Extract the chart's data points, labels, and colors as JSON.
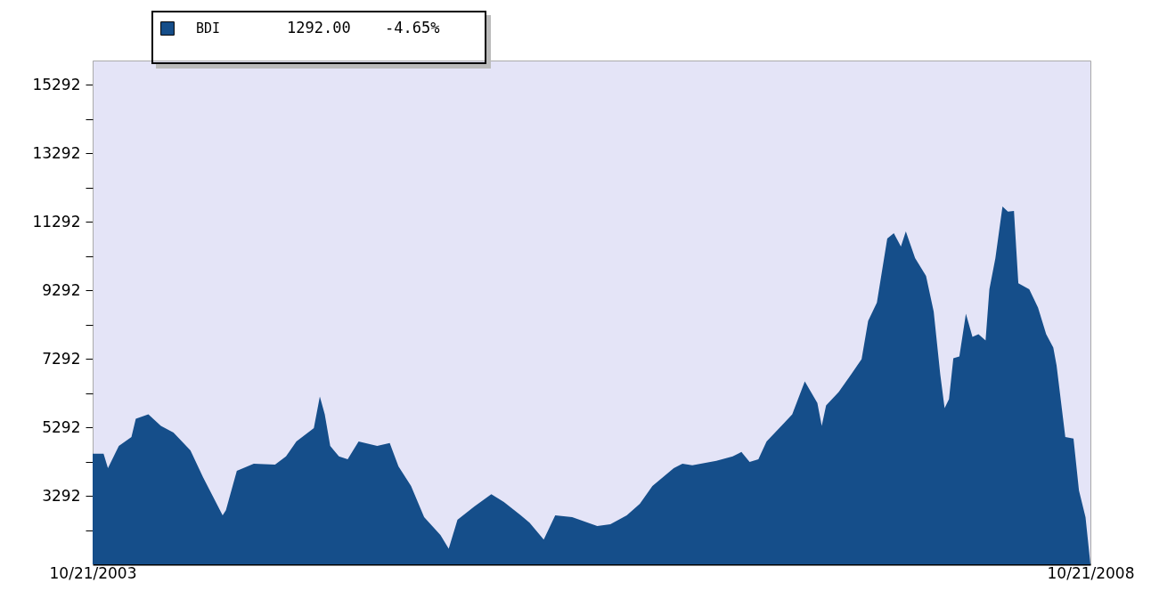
{
  "chart_data": {
    "type": "area",
    "x": [
      "2003-10-21",
      "2003-11-10",
      "2003-11-18",
      "2003-12-08",
      "2003-12-31",
      "2004-01-08",
      "2004-01-31",
      "2004-02-23",
      "2004-03-17",
      "2004-04-17",
      "2004-05-10",
      "2004-06-15",
      "2004-06-21",
      "2004-07-11",
      "2004-08-11",
      "2004-09-19",
      "2004-10-09",
      "2004-10-28",
      "2004-11-29",
      "2004-12-10",
      "2004-12-19",
      "2004-12-29",
      "2005-01-14",
      "2005-01-30",
      "2005-02-19",
      "2005-03-25",
      "2005-04-17",
      "2005-05-03",
      "2005-05-26",
      "2005-06-19",
      "2005-07-19",
      "2005-08-03",
      "2005-08-19",
      "2005-09-19",
      "2005-10-20",
      "2005-11-12",
      "2005-12-13",
      "2005-12-29",
      "2006-01-24",
      "2006-02-14",
      "2006-03-17",
      "2006-05-02",
      "2006-05-26",
      "2006-06-25",
      "2006-07-19",
      "2006-08-11",
      "2006-09-19",
      "2006-10-05",
      "2006-10-23",
      "2006-12-06",
      "2007-01-05",
      "2007-01-21",
      "2007-02-05",
      "2007-02-21",
      "2007-03-08",
      "2007-04-08",
      "2007-04-24",
      "2007-05-17",
      "2007-06-09",
      "2007-06-17",
      "2007-06-25",
      "2007-07-18",
      "2007-08-10",
      "2007-08-29",
      "2007-09-10",
      "2007-09-26",
      "2007-10-15",
      "2007-10-27",
      "2007-11-09",
      "2007-11-18",
      "2007-12-05",
      "2007-12-25",
      "2008-01-08",
      "2008-01-20",
      "2008-01-28",
      "2008-02-05",
      "2008-02-13",
      "2008-02-24",
      "2008-03-07",
      "2008-03-19",
      "2008-03-30",
      "2008-04-12",
      "2008-04-19",
      "2008-04-30",
      "2008-05-13",
      "2008-05-23",
      "2008-06-03",
      "2008-06-11",
      "2008-07-01",
      "2008-07-17",
      "2008-08-01",
      "2008-08-14",
      "2008-08-20",
      "2008-09-05",
      "2008-09-20",
      "2008-09-30",
      "2008-10-12",
      "2008-10-21"
    ],
    "series": [
      {
        "name": "BDI",
        "color": "#154e8a",
        "values": [
          4520,
          4520,
          4100,
          4750,
          5010,
          5540,
          5670,
          5330,
          5140,
          4620,
          3840,
          2720,
          2870,
          4020,
          4230,
          4200,
          4440,
          4880,
          5270,
          6190,
          5670,
          4750,
          4440,
          4360,
          4880,
          4750,
          4830,
          4150,
          3580,
          2670,
          2140,
          1750,
          2590,
          2980,
          3340,
          3110,
          2720,
          2510,
          2010,
          2720,
          2670,
          2410,
          2460,
          2720,
          3060,
          3580,
          4100,
          4230,
          4180,
          4310,
          4440,
          4570,
          4280,
          4360,
          4880,
          5400,
          5670,
          6630,
          6000,
          5330,
          5930,
          6320,
          6840,
          7280,
          8400,
          8930,
          10800,
          10960,
          10570,
          11010,
          10230,
          9710,
          8670,
          6840,
          5850,
          6110,
          7310,
          7360,
          8610,
          7930,
          8010,
          7830,
          9320,
          10230,
          11740,
          11590,
          11610,
          9500,
          9320,
          8790,
          8010,
          7620,
          7100,
          5010,
          4960,
          3450,
          2670,
          1292
        ]
      }
    ],
    "annotations": [
      "1292.00",
      "-4.65%"
    ],
    "xlim": [
      "2003-10-21",
      "2008-10-21"
    ],
    "xticks": [
      {
        "value": "2003-10-21",
        "label": "10/21/2003"
      },
      {
        "value": "2008-10-21",
        "label": "10/21/2008"
      }
    ],
    "ylim": [
      1292,
      16000
    ],
    "yticks": [
      {
        "value": 2292,
        "label": null
      },
      3292,
      {
        "value": 4292,
        "label": null
      },
      5292,
      {
        "value": 6292,
        "label": null
      },
      7292,
      {
        "value": 8292,
        "label": null
      },
      9292,
      {
        "value": 10292,
        "label": null
      },
      11292,
      {
        "value": 12292,
        "label": null
      },
      13292,
      {
        "value": 14292,
        "label": null
      },
      15292
    ],
    "legend": "top left",
    "grid": false
  }
}
